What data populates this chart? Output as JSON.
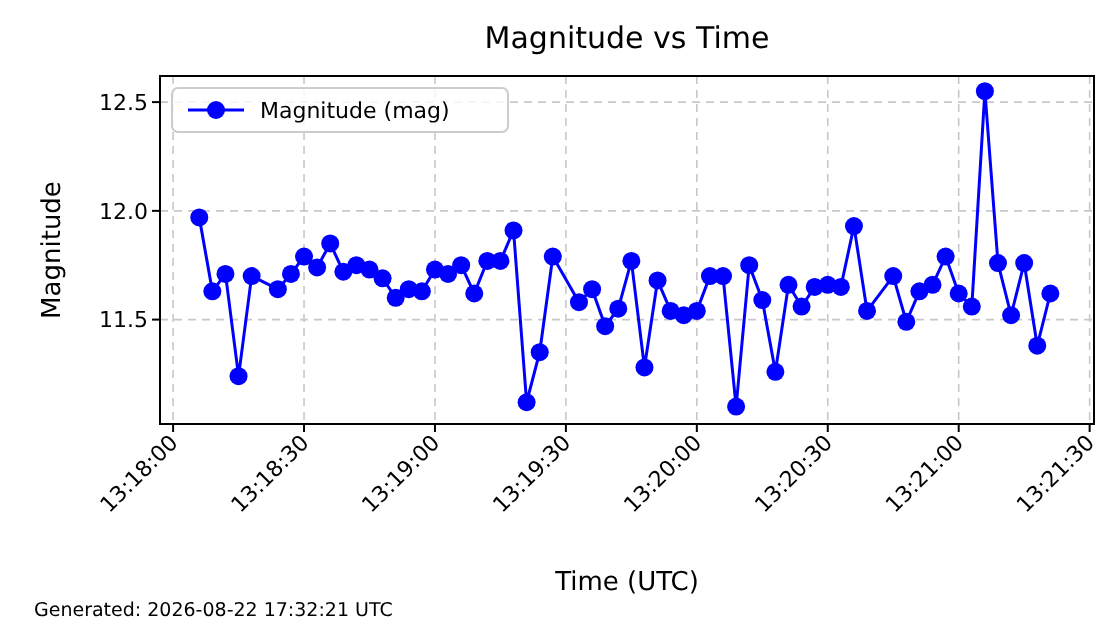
{
  "chart_data": {
    "type": "line",
    "title": "Magnitude vs Time",
    "xlabel": "Time (UTC)",
    "ylabel": "Magnitude",
    "annotations": [
      "Generated: 2026-08-22 17:32:21 UTC"
    ],
    "x": [
      "2026-08-22T13:18:06",
      "2026-08-22T13:18:09",
      "2026-08-22T13:18:12",
      "2026-08-22T13:18:15",
      "2026-08-22T13:18:18",
      "2026-08-22T13:18:24",
      "2026-08-22T13:18:27",
      "2026-08-22T13:18:30",
      "2026-08-22T13:18:33",
      "2026-08-22T13:18:36",
      "2026-08-22T13:18:39",
      "2026-08-22T13:18:42",
      "2026-08-22T13:18:45",
      "2026-08-22T13:18:48",
      "2026-08-22T13:18:51",
      "2026-08-22T13:18:54",
      "2026-08-22T13:18:57",
      "2026-08-22T13:19:00",
      "2026-08-22T13:19:03",
      "2026-08-22T13:19:06",
      "2026-08-22T13:19:09",
      "2026-08-22T13:19:12",
      "2026-08-22T13:19:15",
      "2026-08-22T13:19:18",
      "2026-08-22T13:19:21",
      "2026-08-22T13:19:24",
      "2026-08-22T13:19:27",
      "2026-08-22T13:19:33",
      "2026-08-22T13:19:36",
      "2026-08-22T13:19:39",
      "2026-08-22T13:19:42",
      "2026-08-22T13:19:45",
      "2026-08-22T13:19:48",
      "2026-08-22T13:19:51",
      "2026-08-22T13:19:54",
      "2026-08-22T13:19:57",
      "2026-08-22T13:20:00",
      "2026-08-22T13:20:03",
      "2026-08-22T13:20:06",
      "2026-08-22T13:20:09",
      "2026-08-22T13:20:12",
      "2026-08-22T13:20:15",
      "2026-08-22T13:20:18",
      "2026-08-22T13:20:21",
      "2026-08-22T13:20:24",
      "2026-08-22T13:20:27",
      "2026-08-22T13:20:30",
      "2026-08-22T13:20:33",
      "2026-08-22T13:20:36",
      "2026-08-22T13:20:39",
      "2026-08-22T13:20:45",
      "2026-08-22T13:20:48",
      "2026-08-22T13:20:51",
      "2026-08-22T13:20:54",
      "2026-08-22T13:20:57",
      "2026-08-22T13:21:00",
      "2026-08-22T13:21:03",
      "2026-08-22T13:21:06",
      "2026-08-22T13:21:09",
      "2026-08-22T13:21:12",
      "2026-08-22T13:21:15",
      "2026-08-22T13:21:18",
      "2026-08-22T13:21:21"
    ],
    "series": [
      {
        "name": "Magnitude (mag)",
        "color": "#0000ff",
        "values": [
          11.97,
          11.63,
          11.71,
          11.24,
          11.7,
          11.64,
          11.71,
          11.79,
          11.74,
          11.85,
          11.72,
          11.75,
          11.73,
          11.69,
          11.6,
          11.64,
          11.63,
          11.73,
          11.71,
          11.75,
          11.62,
          11.77,
          11.77,
          11.91,
          11.12,
          11.35,
          11.79,
          11.58,
          11.64,
          11.47,
          11.55,
          11.77,
          11.28,
          11.68,
          11.54,
          11.52,
          11.54,
          11.7,
          11.7,
          11.1,
          11.75,
          11.59,
          11.26,
          11.66,
          11.56,
          11.65,
          11.66,
          11.65,
          11.93,
          11.54,
          11.7,
          11.49,
          11.63,
          11.66,
          11.79,
          11.62,
          11.56,
          12.55,
          11.76,
          11.52,
          11.76,
          11.38,
          11.62
        ]
      }
    ],
    "xlim": [
      "2026-08-22T13:17:57",
      "2026-08-22T13:21:31"
    ],
    "xticks": [
      {
        "value": "2026-08-22T13:18:00",
        "label": "13:18:00"
      },
      {
        "value": "2026-08-22T13:18:30",
        "label": "13:18:30"
      },
      {
        "value": "2026-08-22T13:19:00",
        "label": "13:19:00"
      },
      {
        "value": "2026-08-22T13:19:30",
        "label": "13:19:30"
      },
      {
        "value": "2026-08-22T13:20:00",
        "label": "13:20:00"
      },
      {
        "value": "2026-08-22T13:20:30",
        "label": "13:20:30"
      },
      {
        "value": "2026-08-22T13:21:00",
        "label": "13:21:00"
      },
      {
        "value": "2026-08-22T13:21:30",
        "label": "13:21:30"
      }
    ],
    "ylim": [
      11.02,
      12.62
    ],
    "yticks": [
      11.5,
      {
        "value": 12,
        "label": "12.0"
      },
      12.5
    ],
    "grid": true,
    "legend": "top left",
    "marker": "circle",
    "line_style": "solid"
  }
}
